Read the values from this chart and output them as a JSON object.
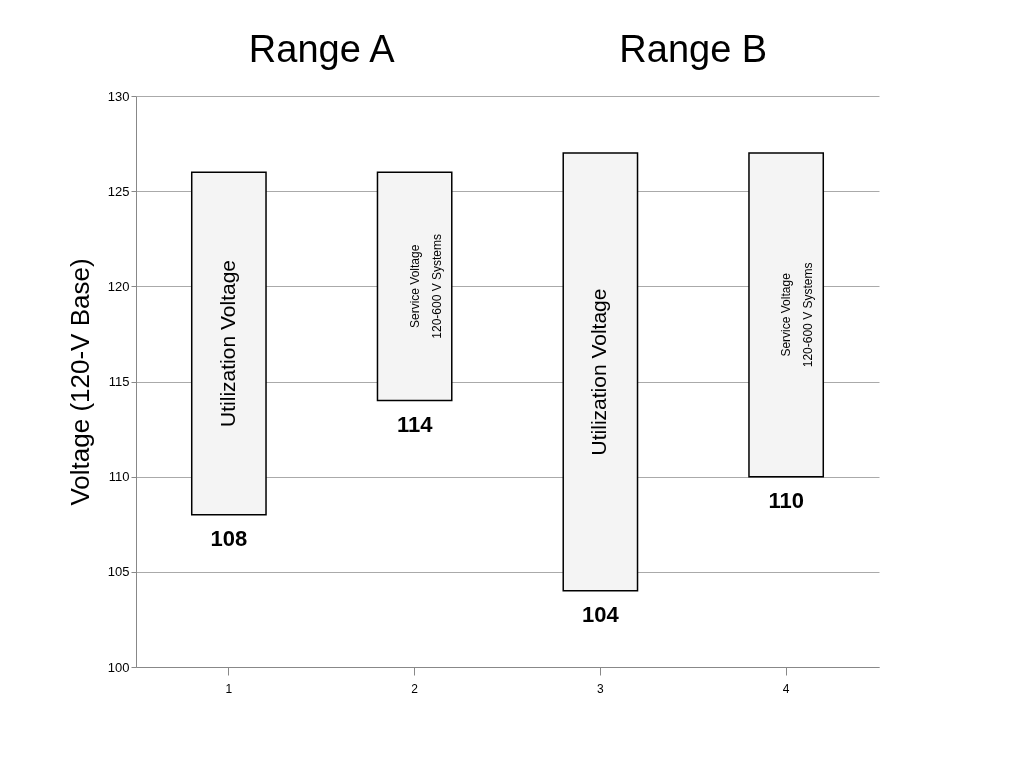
{
  "chart_data": {
    "type": "bar",
    "ylabel": "Voltage (120-V Base)",
    "categories": [
      "1",
      "2",
      "3",
      "4"
    ],
    "base": [
      108,
      114,
      104,
      110
    ],
    "values": [
      18,
      12,
      23,
      17
    ],
    "color": "#f4f4f4",
    "ylim": [
      100,
      130
    ],
    "yticks": [
      100,
      105,
      110,
      115,
      120,
      125,
      130
    ],
    "grid": "y",
    "annotations": [
      "Range A",
      "Range B",
      {
        "text": "108",
        "x": "1",
        "y": 108
      },
      {
        "text": "114",
        "x": "2",
        "y": 114
      },
      {
        "text": "104",
        "x": "3",
        "y": 104
      },
      {
        "text": "110",
        "x": "4",
        "y": 110
      },
      "Utilization Voltage",
      "Service Voltage\n120-600 V Systems",
      "Utilization Voltage",
      "Service Voltage\n120-600 V Systems"
    ]
  }
}
